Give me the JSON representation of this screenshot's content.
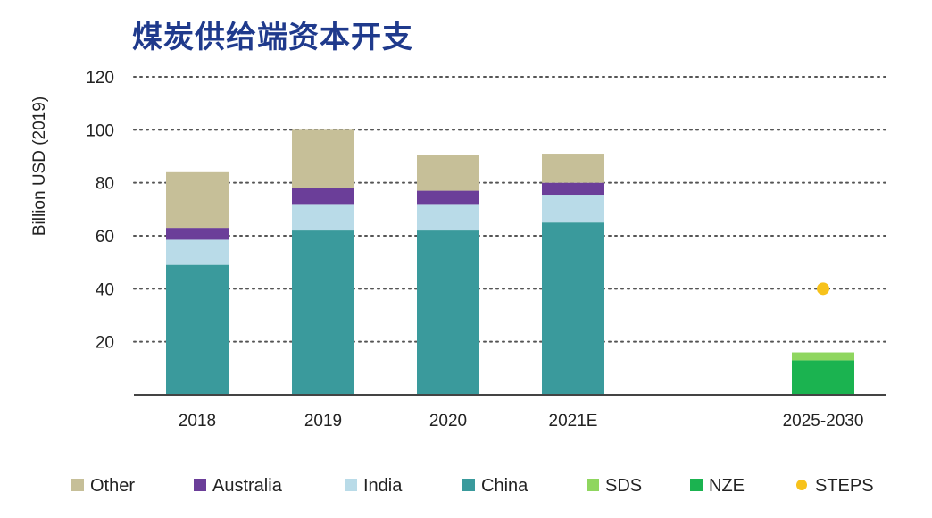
{
  "chart_data": {
    "type": "bar",
    "title": "煤炭供给端资本开支",
    "ylabel": "Billion USD (2019)",
    "ylim": [
      0,
      120
    ],
    "yticks": [
      20,
      40,
      60,
      80,
      100,
      120
    ],
    "grid": true,
    "legend_position": "bottom",
    "categories": [
      "2018",
      "2019",
      "2020",
      "2021E",
      "2025-2030"
    ],
    "series": [
      {
        "name": "China",
        "color": "#3a9a9c",
        "stack": "historical",
        "values": [
          49,
          62,
          62,
          65,
          null
        ]
      },
      {
        "name": "India",
        "color": "#b9dbe8",
        "stack": "historical",
        "values": [
          9.5,
          10,
          10,
          10.5,
          null
        ]
      },
      {
        "name": "Australia",
        "color": "#6b3e99",
        "stack": "historical",
        "values": [
          4.5,
          6,
          5,
          4.5,
          null
        ]
      },
      {
        "name": "Other",
        "color": "#c6bf98",
        "stack": "historical",
        "values": [
          21,
          22,
          13.5,
          11,
          null
        ]
      },
      {
        "name": "NZE",
        "color": "#1bb350",
        "stack": "scenario",
        "values": [
          null,
          null,
          null,
          null,
          13
        ]
      },
      {
        "name": "SDS",
        "color": "#8fd65f",
        "stack": "scenario",
        "values": [
          null,
          null,
          null,
          null,
          3
        ]
      }
    ],
    "points": [
      {
        "name": "STEPS",
        "color": "#f7c21b",
        "category": "2025-2030",
        "value": 40
      }
    ],
    "legend": [
      "Other",
      "Australia",
      "India",
      "China",
      "SDS",
      "NZE",
      "STEPS"
    ]
  }
}
